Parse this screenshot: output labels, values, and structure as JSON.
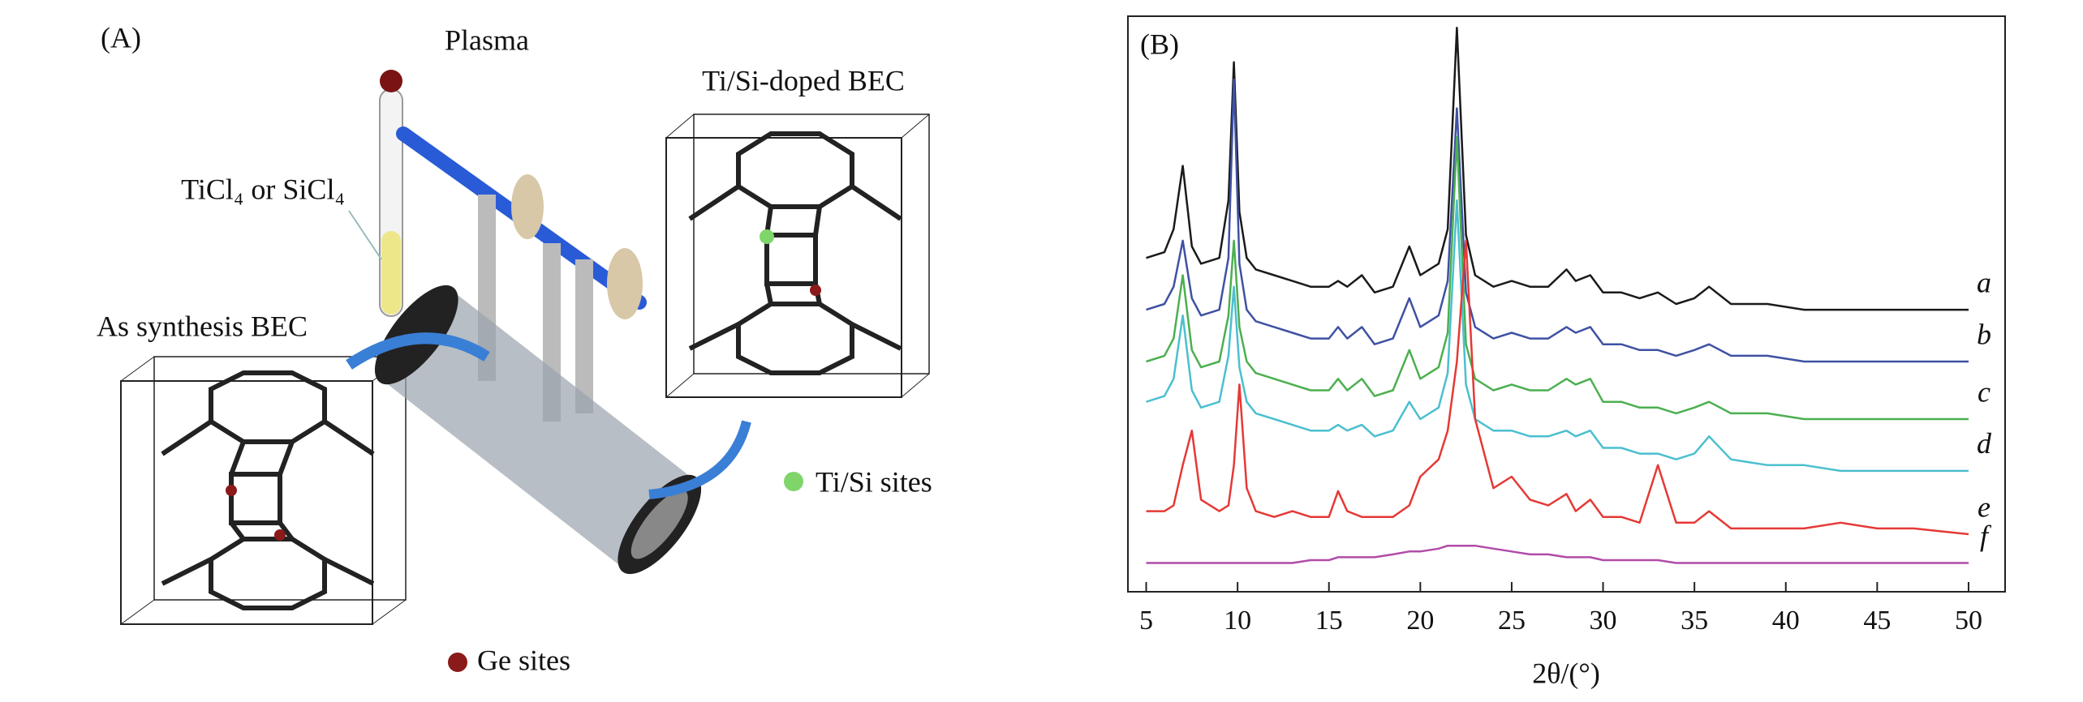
{
  "panel_a": {
    "label": "(A)",
    "plasma": "Plasma",
    "doped": "Ti/Si-doped BEC",
    "precursor": "TiCl₄ or SiCl₄",
    "as_synth": "As synthesis BEC",
    "tisi_sites": "Ti/Si sites",
    "ge_sites": "Ge sites"
  },
  "chart_data": {
    "type": "line",
    "label": "(B)",
    "xlabel": "2θ/(°)",
    "x": [
      5,
      6,
      6.5,
      7,
      7.5,
      8,
      9,
      9.5,
      9.8,
      10.1,
      10.5,
      11,
      12,
      13,
      14,
      15,
      15.5,
      16,
      16.8,
      17.5,
      18.5,
      19.4,
      20,
      21,
      21.5,
      22,
      22.5,
      23,
      24,
      25,
      26,
      27,
      28,
      28.5,
      29.3,
      30,
      31,
      32,
      33,
      34,
      35,
      35.8,
      37,
      39,
      41,
      43,
      45,
      47,
      50
    ],
    "xlim": [
      4,
      52
    ],
    "xticks": [
      5,
      10,
      15,
      20,
      25,
      30,
      35,
      40,
      45,
      50
    ],
    "ylim": [
      0,
      100
    ],
    "series": [
      {
        "name": "a",
        "color": "#1a1a1a",
        "values": [
          58,
          59,
          63,
          74,
          60,
          57,
          58,
          68,
          92,
          66,
          58,
          56,
          55,
          54,
          53,
          53,
          54,
          53,
          55,
          52,
          53,
          60,
          55,
          57,
          63,
          98,
          62,
          55,
          53,
          54,
          53,
          53,
          56,
          54,
          55,
          52,
          52,
          51,
          52,
          50,
          51,
          53,
          50,
          50,
          49,
          49,
          49,
          49,
          49
        ]
      },
      {
        "name": "b",
        "color": "#3f51a3",
        "values": [
          49,
          50,
          53,
          61,
          51,
          48,
          49,
          58,
          89,
          57,
          49,
          47,
          46,
          45,
          44,
          44,
          46,
          44,
          46,
          43,
          44,
          51,
          46,
          48,
          54,
          84,
          52,
          46,
          44,
          45,
          44,
          44,
          46,
          45,
          46,
          43,
          43,
          42,
          42,
          41,
          42,
          43,
          41,
          41,
          40,
          40,
          40,
          40,
          40
        ]
      },
      {
        "name": "c",
        "color": "#4caf50",
        "values": [
          40,
          41,
          44,
          55,
          42,
          39,
          40,
          48,
          61,
          46,
          40,
          38,
          37,
          36,
          35,
          35,
          37,
          35,
          37,
          34,
          35,
          42,
          37,
          39,
          45,
          79,
          43,
          37,
          35,
          36,
          35,
          35,
          37,
          36,
          37,
          33,
          33,
          32,
          32,
          31,
          32,
          33,
          31,
          31,
          30,
          30,
          30,
          30,
          30
        ]
      },
      {
        "name": "d",
        "color": "#4bbfcf",
        "values": [
          33,
          34,
          37,
          48,
          35,
          32,
          33,
          41,
          53,
          39,
          33,
          31,
          30,
          29,
          28,
          28,
          29,
          28,
          29,
          27,
          28,
          33,
          30,
          32,
          38,
          68,
          36,
          30,
          28,
          28,
          27,
          27,
          28,
          27,
          28,
          25,
          25,
          24,
          24,
          23,
          24,
          27,
          23,
          22,
          22,
          21,
          21,
          21,
          21
        ]
      },
      {
        "name": "e",
        "color": "#e53935",
        "values": [
          14,
          14,
          15,
          22,
          28,
          16,
          14,
          15,
          22,
          36,
          18,
          14,
          13,
          14,
          13,
          13,
          17.5,
          14,
          13,
          13,
          13,
          15,
          20,
          23,
          28,
          40,
          61,
          30,
          18,
          20,
          16,
          15,
          17,
          14,
          16,
          13,
          13,
          12,
          22,
          12,
          12,
          14,
          11,
          11,
          11,
          12,
          11,
          11,
          10
        ]
      },
      {
        "name": "f",
        "color": "#b04ca8",
        "values": [
          5,
          5,
          5,
          5,
          5,
          5,
          5,
          5,
          5,
          5,
          5,
          5,
          5,
          5,
          5.5,
          5.5,
          6,
          6,
          6,
          6,
          6.5,
          7,
          7,
          7.5,
          8,
          8,
          8,
          8,
          7.5,
          7,
          6.5,
          6.5,
          6,
          6,
          6,
          5.5,
          5.5,
          5.5,
          5.5,
          5,
          5,
          5,
          5,
          5,
          5,
          5,
          5,
          5,
          5
        ]
      }
    ]
  }
}
